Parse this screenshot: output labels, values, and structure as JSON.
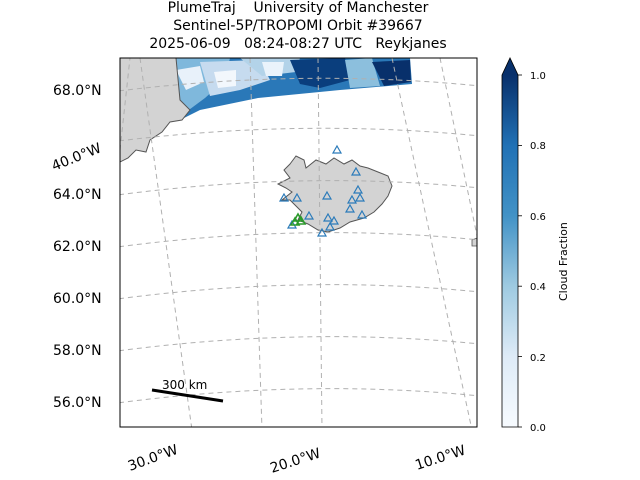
{
  "title": {
    "line1": "PlumeTraj    University of Manchester",
    "line2": "Sentinel-5P/TROPOMI Orbit #39667",
    "line3": "2025-06-09   08:24-08:27 UTC   Reykjanes"
  },
  "map": {
    "lat_labels": [
      "68.0°N",
      "64.0°N",
      "62.0°N",
      "60.0°N",
      "58.0°N",
      "56.0°N"
    ],
    "lon_labels": [
      "30.0°W",
      "20.0°W",
      "10.0°W"
    ],
    "side_lon_label": "40.0°W",
    "scale_bar_label": "300 km",
    "land_color": "#d3d3d3",
    "grid_color": "#b0b0b0",
    "volcano_marker_color": "#2a9a2a",
    "station_marker_color": "#2b7bba"
  },
  "colorbar": {
    "label": "Cloud Fraction",
    "ticks": [
      "0.0",
      "0.2",
      "0.4",
      "0.6",
      "0.8",
      "1.0"
    ],
    "colormap": "Blues",
    "min": 0.0,
    "max": 1.0,
    "extend": "max"
  }
}
